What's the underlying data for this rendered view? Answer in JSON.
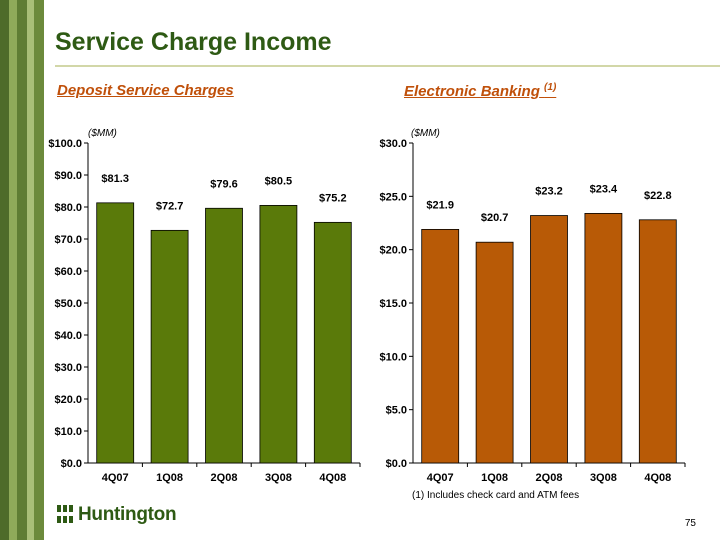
{
  "title": "Service Charge Income",
  "page_number": "75",
  "footnote": "(1) Includes check card and ATM fees",
  "logo_text": "Huntington",
  "colors": {
    "title": "#2e5a14",
    "subtitle": "#c0500a",
    "deposit_bar": "#5a7a0a",
    "electronic_bar": "#b85a06",
    "stripe_dark": "#4e6b2a",
    "stripe_light": "#8faa5a"
  },
  "chart_data": [
    {
      "type": "bar",
      "title": "Deposit Service Charges",
      "unit_label": "($MM)",
      "categories": [
        "4Q07",
        "1Q08",
        "2Q08",
        "3Q08",
        "4Q08"
      ],
      "values": [
        81.3,
        72.7,
        79.6,
        80.5,
        75.2
      ],
      "value_labels": [
        "$81.3",
        "$72.7",
        "$79.6",
        "$80.5",
        "$75.2"
      ],
      "y_ticks": [
        "$0.0",
        "$10.0",
        "$20.0",
        "$30.0",
        "$40.0",
        "$50.0",
        "$60.0",
        "$70.0",
        "$80.0",
        "$90.0",
        "$100.0"
      ],
      "ylim": [
        0,
        100
      ],
      "grid": false,
      "bar_color": "#5a7a0a"
    },
    {
      "type": "bar",
      "title": "Electronic Banking",
      "title_note": "(1)",
      "unit_label": "($MM)",
      "categories": [
        "4Q07",
        "1Q08",
        "2Q08",
        "3Q08",
        "4Q08"
      ],
      "values": [
        21.9,
        20.7,
        23.2,
        23.4,
        22.8
      ],
      "value_labels": [
        "$21.9",
        "$20.7",
        "$23.2",
        "$23.4",
        "$22.8"
      ],
      "y_ticks": [
        "$0.0",
        "$5.0",
        "$10.0",
        "$15.0",
        "$20.0",
        "$25.0",
        "$30.0"
      ],
      "ylim": [
        0,
        30
      ],
      "grid": false,
      "bar_color": "#b85a06"
    }
  ]
}
